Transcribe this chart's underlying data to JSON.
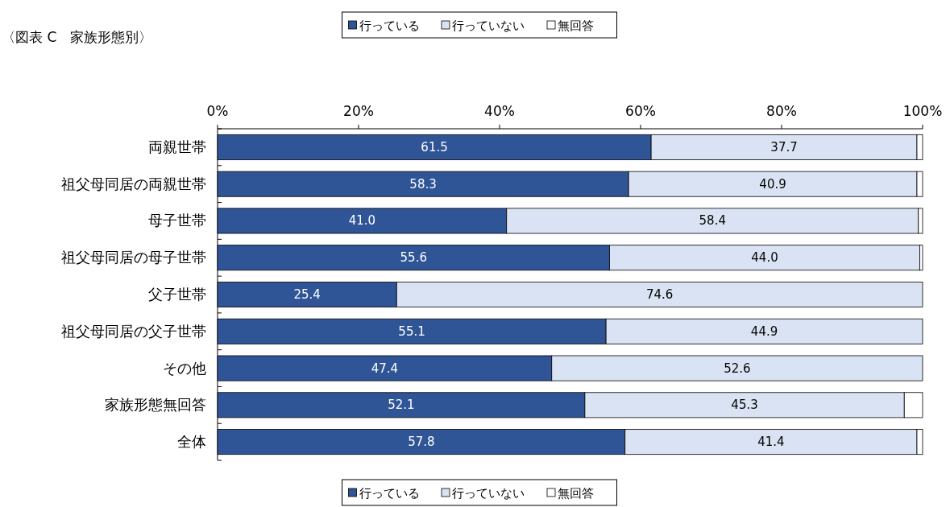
{
  "chart_data": {
    "type": "bar",
    "orientation": "horizontal",
    "stacked": true,
    "title": "〈図表 C　家族形態別〉",
    "categories": [
      "両親世帯",
      "祖父母同居の両親世帯",
      "母子世帯",
      "祖父母同居の母子世帯",
      "父子世帯",
      "祖父母同居の父子世帯",
      "その他",
      "家族形態無回答",
      "全体"
    ],
    "series": [
      {
        "name": "行っている",
        "color": "#2f5597",
        "values": [
          61.5,
          58.3,
          41.0,
          55.6,
          25.4,
          55.1,
          47.4,
          52.1,
          57.8
        ],
        "value_labels": [
          "61.5",
          "58.3",
          "41.0",
          "55.6",
          "25.4",
          "55.1",
          "47.4",
          "52.1",
          "57.8"
        ]
      },
      {
        "name": "行っていない",
        "color": "#dae3f3",
        "values": [
          37.7,
          40.9,
          58.4,
          44.0,
          74.6,
          44.9,
          52.6,
          45.3,
          41.4
        ],
        "value_labels": [
          "37.7",
          "40.9",
          "58.4",
          "44.0",
          "74.6",
          "44.9",
          "52.6",
          "45.3",
          "41.4"
        ]
      },
      {
        "name": "無回答",
        "color": "#ffffff",
        "values": [
          0.8,
          0.8,
          0.6,
          0.4,
          0,
          0,
          0,
          2.6,
          0.8
        ]
      }
    ],
    "xlim": [
      0,
      100
    ],
    "xticks": [
      {
        "value": 0,
        "label": "0%"
      },
      {
        "value": 20,
        "label": "20%"
      },
      {
        "value": 40,
        "label": "40%"
      },
      {
        "value": 60,
        "label": "60%"
      },
      {
        "value": 80,
        "label": "80%"
      },
      {
        "value": 100,
        "label": "100%"
      }
    ],
    "grid": false,
    "legend": [
      "top",
      "bottom"
    ]
  }
}
